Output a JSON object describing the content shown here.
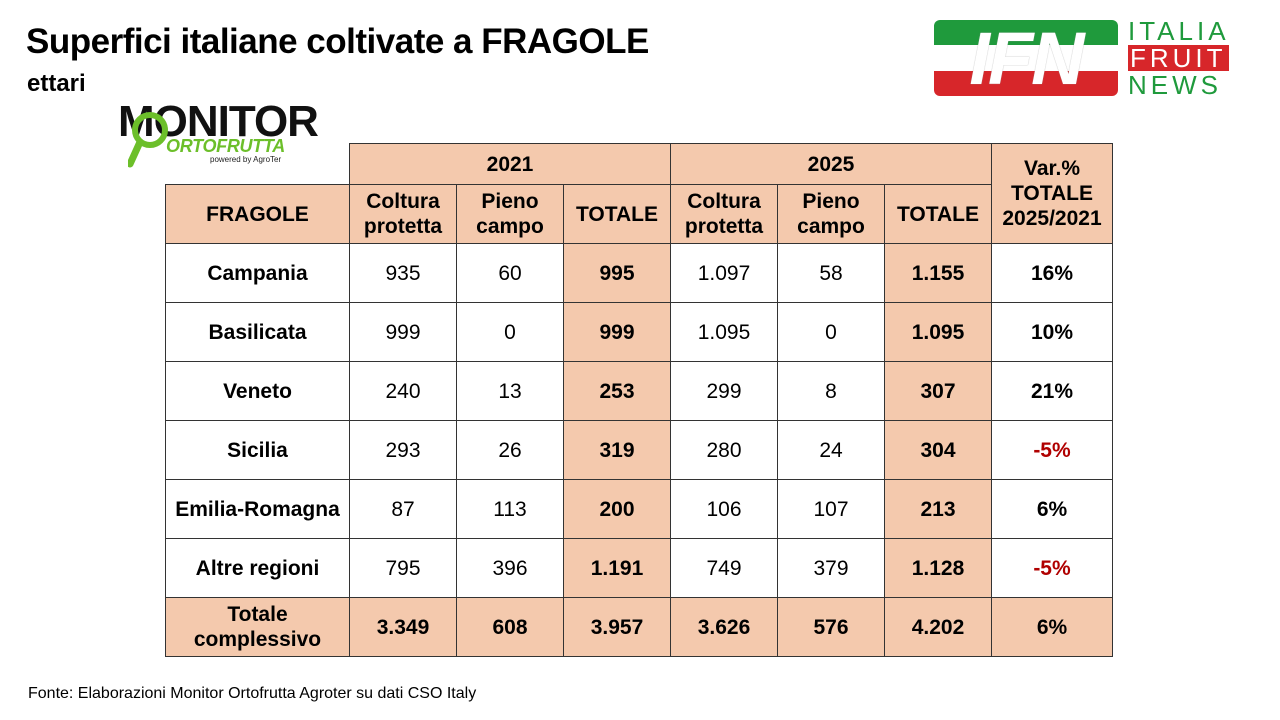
{
  "header": {
    "title": "Superfici italiane coltivate a FRAGOLE",
    "subtitle": "ettari"
  },
  "logos": {
    "monitor": {
      "word": "MONITOR",
      "sub": "ORTOFRUTTA",
      "powered": "powered by AgroTer"
    },
    "ifn": {
      "badge": "IFN",
      "line1": "ITALIA",
      "line2": "FRUIT",
      "line3": "NEWS",
      "colors": {
        "green": "#1f9a3c",
        "red": "#d7262a"
      }
    }
  },
  "chart_data": {
    "type": "table",
    "year_headers": [
      "2021",
      "2025"
    ],
    "var_header": "Var.% TOTALE 2025/2021",
    "row_header": "FRAGOLE",
    "subheaders": [
      "Coltura protetta",
      "Pieno campo",
      "TOTALE",
      "Coltura protetta",
      "Pieno campo",
      "TOTALE"
    ],
    "rows": [
      {
        "region": "Campania",
        "cp2021": "935",
        "pc2021": "60",
        "tot2021": "995",
        "cp2025": "1.097",
        "pc2025": "58",
        "tot2025": "1.155",
        "var": "16%"
      },
      {
        "region": "Basilicata",
        "cp2021": "999",
        "pc2021": "0",
        "tot2021": "999",
        "cp2025": "1.095",
        "pc2025": "0",
        "tot2025": "1.095",
        "var": "10%"
      },
      {
        "region": "Veneto",
        "cp2021": "240",
        "pc2021": "13",
        "tot2021": "253",
        "cp2025": "299",
        "pc2025": "8",
        "tot2025": "307",
        "var": "21%"
      },
      {
        "region": "Sicilia",
        "cp2021": "293",
        "pc2021": "26",
        "tot2021": "319",
        "cp2025": "280",
        "pc2025": "24",
        "tot2025": "304",
        "var": "-5%"
      },
      {
        "region": "Emilia-Romagna",
        "cp2021": "87",
        "pc2021": "113",
        "tot2021": "200",
        "cp2025": "106",
        "pc2025": "107",
        "tot2025": "213",
        "var": "6%"
      },
      {
        "region": "Altre regioni",
        "cp2021": "795",
        "pc2021": "396",
        "tot2021": "1.191",
        "cp2025": "749",
        "pc2025": "379",
        "tot2025": "1.128",
        "var": "-5%"
      }
    ],
    "total_row": {
      "region": "Totale complessivo",
      "cp2021": "3.349",
      "pc2021": "608",
      "tot2021": "3.957",
      "cp2025": "3.626",
      "pc2025": "576",
      "tot2025": "4.202",
      "var": "6%"
    },
    "colors": {
      "header_fill": "#f4c9ad",
      "negative": "#b00000"
    }
  },
  "footer": {
    "source": "Fonte: Elaborazioni Monitor Ortofrutta Agroter su dati CSO Italy"
  }
}
